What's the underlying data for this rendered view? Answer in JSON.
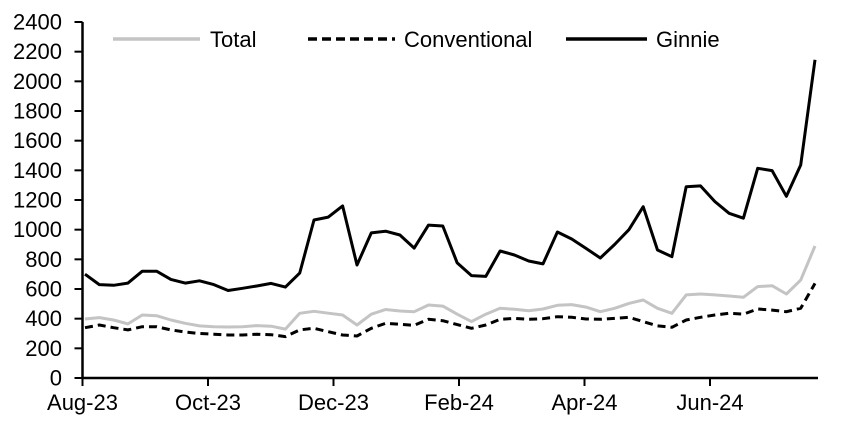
{
  "page": {
    "background": "#ffffff",
    "text_color": "#000000"
  },
  "chart_data": {
    "type": "line",
    "title": "",
    "xlabel": "",
    "ylabel": "",
    "x_frequency": "weekly",
    "grid": false,
    "legend_position": "top-inside",
    "ylim": [
      0,
      2400
    ],
    "y_tick_step": 200,
    "y_ticks": [
      0,
      200,
      400,
      600,
      800,
      1000,
      1200,
      1400,
      1600,
      1800,
      2000,
      2200,
      2400
    ],
    "x_tick_labels": [
      "Aug-23",
      "Oct-23",
      "Dec-23",
      "Feb-24",
      "Apr-24",
      "Jun-24"
    ],
    "series": [
      {
        "name": "Total",
        "color": "#c4c4c4",
        "style": "solid",
        "values": [
          398,
          407,
          391,
          365,
          425,
          420,
          391,
          369,
          351,
          346,
          344,
          346,
          353,
          349,
          330,
          436,
          450,
          437,
          425,
          357,
          430,
          462,
          452,
          447,
          492,
          485,
          430,
          380,
          430,
          470,
          463,
          454,
          465,
          490,
          495,
          478,
          447,
          470,
          503,
          526,
          470,
          436,
          560,
          566,
          560,
          553,
          544,
          616,
          622,
          566,
          660,
          890
        ]
      },
      {
        "name": "Conventional",
        "color": "#000000",
        "style": "dashed",
        "values": [
          339,
          357,
          339,
          324,
          346,
          346,
          324,
          310,
          300,
          295,
          290,
          290,
          295,
          292,
          279,
          324,
          335,
          312,
          290,
          283,
          335,
          369,
          362,
          355,
          396,
          386,
          360,
          335,
          357,
          396,
          402,
          396,
          400,
          413,
          409,
          398,
          396,
          402,
          409,
          380,
          351,
          342,
          391,
          409,
          425,
          436,
          430,
          465,
          458,
          447,
          470,
          638
        ]
      },
      {
        "name": "Ginnie",
        "color": "#000000",
        "style": "solid",
        "values": [
          700,
          630,
          625,
          640,
          720,
          720,
          665,
          640,
          655,
          630,
          590,
          605,
          620,
          638,
          613,
          707,
          1065,
          1085,
          1160,
          762,
          978,
          990,
          964,
          876,
          1031,
          1025,
          776,
          690,
          685,
          856,
          829,
          789,
          769,
          984,
          937,
          874,
          809,
          900,
          1000,
          1155,
          863,
          818,
          1290,
          1295,
          1190,
          1110,
          1077,
          1414,
          1398,
          1225,
          1436,
          2145
        ]
      }
    ]
  }
}
